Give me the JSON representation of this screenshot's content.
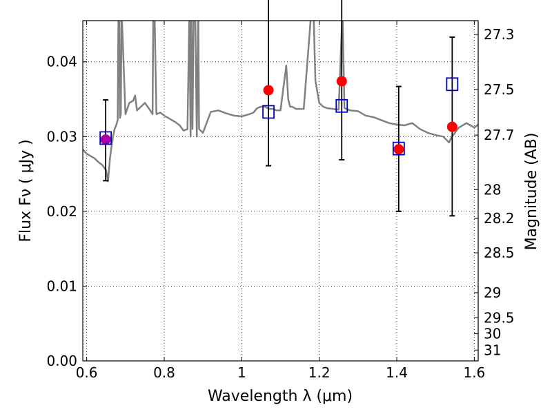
{
  "chart_data": {
    "type": "scatter",
    "title": "",
    "xlabel": "Wavelength  λ (μm)",
    "ylabel": "Flux  Fν  ( μJy )",
    "y2label": "Magnitude (AB)",
    "xlim": [
      0.59,
      1.61
    ],
    "ylim": [
      0.0,
      0.0455
    ],
    "xticks": [
      0.6,
      0.8,
      1.0,
      1.2,
      1.4,
      1.6
    ],
    "xtick_labels": [
      "0.6",
      "0.8",
      "1",
      "1.2",
      "1.4",
      "1.6"
    ],
    "yticks": [
      0.0,
      0.01,
      0.02,
      0.03,
      0.04
    ],
    "ytick_labels": [
      "0.00",
      "0.01",
      "0.02",
      "0.03",
      "0.04"
    ],
    "y2ticks": [
      27.3,
      27.5,
      27.7,
      28,
      28.2,
      28.5,
      29,
      29.5,
      30,
      31
    ],
    "y2tick_labels": [
      "27.3",
      "27.5",
      "27.7",
      "28",
      "28.2",
      "28.5",
      "29",
      "29.5",
      "30",
      "31"
    ],
    "grid": true,
    "colors": {
      "model": "#808080",
      "observed": "#ff0000",
      "model_flux": "#0000cc",
      "overlap": "#aa00aa",
      "errorbar": "#000000"
    },
    "series": [
      {
        "type": "line",
        "x": [
          0.59,
          0.6,
          0.62,
          0.63,
          0.64,
          0.65,
          0.655,
          0.66,
          0.665,
          0.668,
          0.672,
          0.676,
          0.68,
          0.682,
          0.684,
          0.686,
          0.688,
          0.69,
          0.7,
          0.71,
          0.72,
          0.725,
          0.73,
          0.74,
          0.75,
          0.76,
          0.77,
          0.772,
          0.775,
          0.78,
          0.79,
          0.8,
          0.81,
          0.82,
          0.83,
          0.84,
          0.85,
          0.86,
          0.865,
          0.868,
          0.87,
          0.873,
          0.876,
          0.88,
          0.884,
          0.888,
          0.89,
          0.9,
          0.92,
          0.94,
          0.96,
          0.98,
          1.0,
          1.02,
          1.03,
          1.04,
          1.05,
          1.06,
          1.07,
          1.08,
          1.09,
          1.1,
          1.115,
          1.12,
          1.125,
          1.13,
          1.14,
          1.16,
          1.18,
          1.185,
          1.19,
          1.2,
          1.21,
          1.22,
          1.25,
          1.26,
          1.265,
          1.28,
          1.3,
          1.32,
          1.34,
          1.36,
          1.38,
          1.4,
          1.42,
          1.44,
          1.46,
          1.48,
          1.5,
          1.52,
          1.535,
          1.54,
          1.55,
          1.56,
          1.58,
          1.6,
          1.61
        ],
        "y": [
          0.0283,
          0.0277,
          0.0271,
          0.0266,
          0.0262,
          0.0255,
          0.024,
          0.027,
          0.029,
          0.03,
          0.031,
          0.0315,
          0.0322,
          0.047,
          0.047,
          0.0325,
          0.033,
          0.047,
          0.033,
          0.0345,
          0.0348,
          0.0355,
          0.0335,
          0.034,
          0.0345,
          0.0338,
          0.033,
          0.047,
          0.047,
          0.033,
          0.0332,
          0.0328,
          0.0325,
          0.0322,
          0.0319,
          0.0315,
          0.0308,
          0.031,
          0.047,
          0.03,
          0.047,
          0.031,
          0.047,
          0.047,
          0.03,
          0.047,
          0.031,
          0.0305,
          0.0333,
          0.0335,
          0.0331,
          0.0328,
          0.0327,
          0.033,
          0.0332,
          0.0338,
          0.034,
          0.034,
          0.0337,
          0.0337,
          0.0335,
          0.0335,
          0.0395,
          0.035,
          0.034,
          0.034,
          0.0337,
          0.0337,
          0.047,
          0.047,
          0.0375,
          0.0345,
          0.034,
          0.0338,
          0.0336,
          0.047,
          0.0338,
          0.0335,
          0.0334,
          0.0328,
          0.0326,
          0.0322,
          0.0318,
          0.0316,
          0.0315,
          0.0318,
          0.031,
          0.0305,
          0.0302,
          0.03,
          0.0292,
          0.0298,
          0.0305,
          0.0312,
          0.0318,
          0.0312,
          0.0316
        ]
      },
      {
        "type": "errorbar",
        "x": [
          0.649,
          1.069,
          1.258,
          1.405,
          1.543
        ],
        "y": [
          0.0296,
          0.0362,
          0.0374,
          0.0283,
          0.0313
        ],
        "yerr_low": [
          0.0055,
          0.0101,
          0.0105,
          0.0083,
          0.0119
        ],
        "yerr_high": [
          0.0053,
          0.0125,
          0.0125,
          0.0084,
          0.012
        ]
      },
      {
        "type": "squares",
        "x": [
          0.649,
          1.069,
          1.258,
          1.405,
          1.543
        ],
        "y": [
          0.0298,
          0.0333,
          0.0341,
          0.0284,
          0.037
        ]
      }
    ]
  }
}
